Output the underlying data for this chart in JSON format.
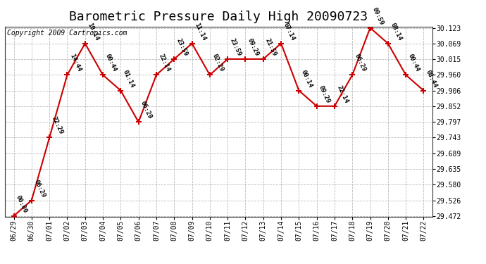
{
  "title": "Barometric Pressure Daily High 20090723",
  "copyright": "Copyright 2009 Cartronics.com",
  "background_color": "#ffffff",
  "plot_bg_color": "#ffffff",
  "grid_color": "#bbbbbb",
  "line_color": "#cc0000",
  "marker_color": "#cc0000",
  "dates": [
    "06/29",
    "06/30",
    "07/01",
    "07/02",
    "07/03",
    "07/04",
    "07/05",
    "07/06",
    "07/07",
    "07/08",
    "07/09",
    "07/10",
    "07/11",
    "07/12",
    "07/13",
    "07/14",
    "07/15",
    "07/16",
    "07/17",
    "07/18",
    "07/19",
    "07/20",
    "07/21",
    "07/22"
  ],
  "values": [
    29.472,
    29.526,
    29.743,
    29.96,
    30.069,
    29.96,
    29.906,
    29.797,
    29.96,
    30.015,
    30.069,
    29.96,
    30.015,
    30.015,
    30.015,
    30.069,
    29.906,
    29.852,
    29.852,
    29.96,
    30.123,
    30.069,
    29.96,
    29.906
  ],
  "time_labels": [
    "00:00",
    "06:29",
    "22:29",
    "14:44",
    "10:14",
    "00:44",
    "01:14",
    "06:29",
    "22:14",
    "23:59",
    "11:14",
    "02:29",
    "23:59",
    "09:29",
    "21:59",
    "07:14",
    "00:14",
    "09:29",
    "22:14",
    "06:29",
    "09:59",
    "08:14",
    "00:44",
    "08:44"
  ],
  "ylim_min": 29.472,
  "ylim_max": 30.123,
  "ytick_values": [
    29.472,
    29.526,
    29.58,
    29.635,
    29.689,
    29.743,
    29.797,
    29.852,
    29.906,
    29.96,
    30.015,
    30.069,
    30.123
  ],
  "title_fontsize": 13,
  "label_fontsize": 6.5,
  "copyright_fontsize": 7,
  "tick_fontsize": 7,
  "label_rotation": -65
}
